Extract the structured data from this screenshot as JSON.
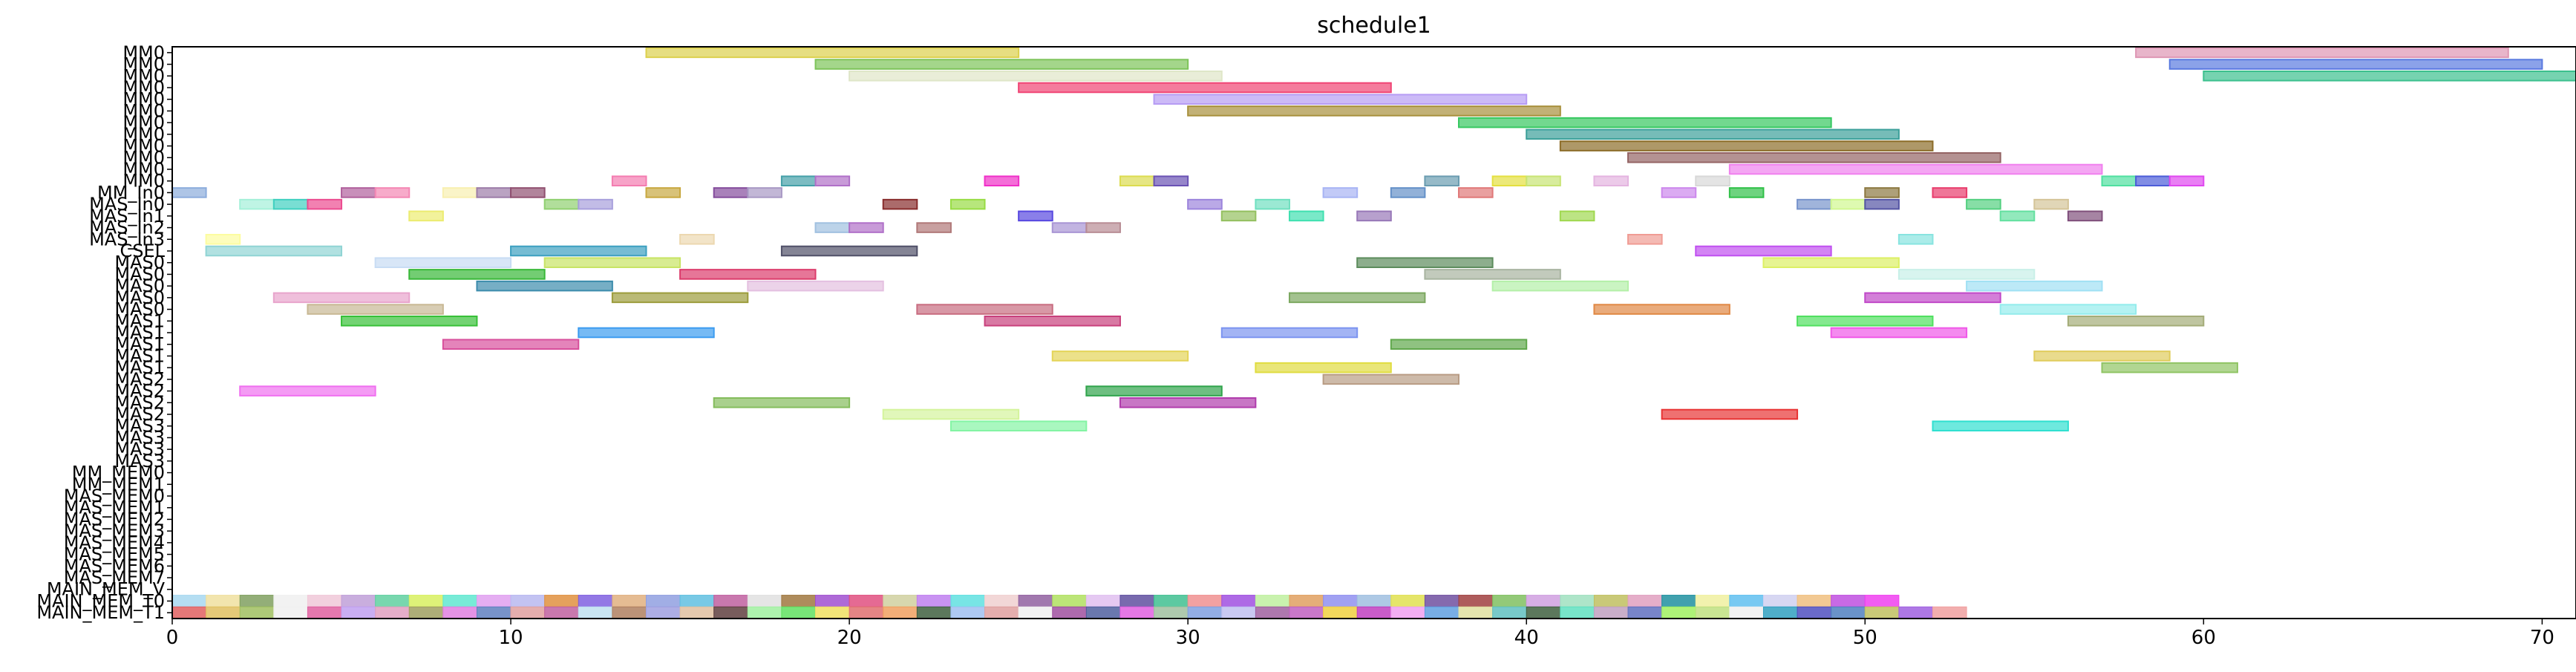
{
  "chart_data": {
    "type": "gantt",
    "title": "schedule1",
    "xlabel": "",
    "ylabel": "",
    "xlim": [
      0,
      71
    ],
    "xticks": [
      0,
      10,
      20,
      30,
      40,
      50,
      60,
      70
    ],
    "grid": false,
    "rows": [
      "MM0",
      "MM0",
      "MM0",
      "MM0",
      "MM0",
      "MM0",
      "MM0",
      "MM0",
      "MM0",
      "MM0",
      "MM0",
      "MM0",
      "MM_In0",
      "MAS_In0",
      "MAS_In1",
      "MAS_In2",
      "MAS_In3",
      "CSEL",
      "MAS0",
      "MAS0",
      "MAS0",
      "MAS0",
      "MAS0",
      "MAS1",
      "MAS1",
      "MAS1",
      "MAS1",
      "MAS1",
      "MAS2",
      "MAS2",
      "MAS2",
      "MAS2",
      "MAS3",
      "MAS3",
      "MAS3",
      "MAS3",
      "MM_MEM0",
      "MM_MEM1",
      "MAS_MEM0",
      "MAS_MEM1",
      "MAS_MEM2",
      "MAS_MEM3",
      "MAS_MEM4",
      "MAS_MEM5",
      "MAS_MEM6",
      "MAS_MEM7",
      "MAIN_MEM_V",
      "MAIN_MEM_T0",
      "MAIN_MEM_T1"
    ],
    "bars": [
      {
        "row": 0,
        "start": 14,
        "end": 25,
        "color": "#dcd04c"
      },
      {
        "row": 0,
        "start": 58,
        "end": 69,
        "color": "#de96b4"
      },
      {
        "row": 1,
        "start": 19,
        "end": 30,
        "color": "#7ec45a"
      },
      {
        "row": 1,
        "start": 59,
        "end": 70,
        "color": "#5a7ae0"
      },
      {
        "row": 2,
        "start": 20,
        "end": 31,
        "color": "#dfe6c8"
      },
      {
        "row": 2,
        "start": 60,
        "end": 71,
        "color": "#3cc08e"
      },
      {
        "row": 3,
        "start": 25,
        "end": 36,
        "color": "#f04474"
      },
      {
        "row": 4,
        "start": 29,
        "end": 40,
        "color": "#b69cf4"
      },
      {
        "row": 5,
        "start": 30,
        "end": 41,
        "color": "#a8903c"
      },
      {
        "row": 6,
        "start": 38,
        "end": 49,
        "color": "#36c860"
      },
      {
        "row": 7,
        "start": 40,
        "end": 51,
        "color": "#3ca09a"
      },
      {
        "row": 8,
        "start": 41,
        "end": 52,
        "color": "#8c6c28"
      },
      {
        "row": 9,
        "start": 43,
        "end": 54,
        "color": "#946464"
      },
      {
        "row": 10,
        "start": 46,
        "end": 57,
        "color": "#f080ee"
      },
      {
        "row": 11,
        "start": 13,
        "end": 14,
        "color": "#f47cb0"
      },
      {
        "row": 11,
        "start": 18,
        "end": 19,
        "color": "#44a0a8"
      },
      {
        "row": 11,
        "start": 19,
        "end": 20,
        "color": "#b070c8"
      },
      {
        "row": 11,
        "start": 24,
        "end": 25,
        "color": "#f030c8"
      },
      {
        "row": 11,
        "start": 28,
        "end": 29,
        "color": "#dcdc50"
      },
      {
        "row": 11,
        "start": 29,
        "end": 30,
        "color": "#6a52b4"
      },
      {
        "row": 11,
        "start": 37,
        "end": 38,
        "color": "#6a9cb0"
      },
      {
        "row": 11,
        "start": 39,
        "end": 40,
        "color": "#e4e040"
      },
      {
        "row": 11,
        "start": 40,
        "end": 41,
        "color": "#c8e474"
      },
      {
        "row": 11,
        "start": 42,
        "end": 43,
        "color": "#e4b4e0"
      },
      {
        "row": 11,
        "start": 45,
        "end": 46,
        "color": "#d8d8d8"
      },
      {
        "row": 11,
        "start": 57,
        "end": 58,
        "color": "#50e0a0"
      },
      {
        "row": 11,
        "start": 58,
        "end": 59,
        "color": "#4c5cd8"
      },
      {
        "row": 11,
        "start": 59,
        "end": 60,
        "color": "#e048f0"
      },
      {
        "row": 12,
        "start": 0,
        "end": 1,
        "color": "#8cacdc"
      },
      {
        "row": 12,
        "start": 5,
        "end": 6,
        "color": "#b0609c"
      },
      {
        "row": 12,
        "start": 6,
        "end": 7,
        "color": "#f488b4"
      },
      {
        "row": 12,
        "start": 8,
        "end": 9,
        "color": "#f8f0b0"
      },
      {
        "row": 12,
        "start": 9,
        "end": 10,
        "color": "#9c7ca8"
      },
      {
        "row": 12,
        "start": 10,
        "end": 11,
        "color": "#905070"
      },
      {
        "row": 12,
        "start": 14,
        "end": 15,
        "color": "#c8a840"
      },
      {
        "row": 12,
        "start": 16,
        "end": 17,
        "color": "#844c9c"
      },
      {
        "row": 12,
        "start": 17,
        "end": 18,
        "color": "#a898c4"
      },
      {
        "row": 12,
        "start": 34,
        "end": 35,
        "color": "#a8b4f4"
      },
      {
        "row": 12,
        "start": 36,
        "end": 37,
        "color": "#6490c8"
      },
      {
        "row": 12,
        "start": 38,
        "end": 39,
        "color": "#e07878"
      },
      {
        "row": 12,
        "start": 44,
        "end": 45,
        "color": "#cc88ec"
      },
      {
        "row": 12,
        "start": 46,
        "end": 47,
        "color": "#30c048"
      },
      {
        "row": 12,
        "start": 50,
        "end": 51,
        "color": "#8c7840"
      },
      {
        "row": 12,
        "start": 52,
        "end": 53,
        "color": "#e83c6c"
      },
      {
        "row": 13,
        "start": 2,
        "end": 3,
        "color": "#a4f0d8"
      },
      {
        "row": 13,
        "start": 3,
        "end": 4,
        "color": "#40d0c0"
      },
      {
        "row": 13,
        "start": 4,
        "end": 5,
        "color": "#ec4c90"
      },
      {
        "row": 13,
        "start": 11,
        "end": 12,
        "color": "#90d070"
      },
      {
        "row": 13,
        "start": 12,
        "end": 13,
        "color": "#a8a0dc"
      },
      {
        "row": 13,
        "start": 21,
        "end": 22,
        "color": "#882c2c"
      },
      {
        "row": 13,
        "start": 23,
        "end": 24,
        "color": "#98dc44"
      },
      {
        "row": 13,
        "start": 30,
        "end": 31,
        "color": "#9c84dc"
      },
      {
        "row": 13,
        "start": 32,
        "end": 33,
        "color": "#70e0c0"
      },
      {
        "row": 13,
        "start": 48,
        "end": 49,
        "color": "#7894cc"
      },
      {
        "row": 13,
        "start": 49,
        "end": 50,
        "color": "#d0f890"
      },
      {
        "row": 13,
        "start": 50,
        "end": 51,
        "color": "#5454a4"
      },
      {
        "row": 13,
        "start": 53,
        "end": 54,
        "color": "#54d080"
      },
      {
        "row": 13,
        "start": 55,
        "end": 56,
        "color": "#d4c498"
      },
      {
        "row": 14,
        "start": 7,
        "end": 8,
        "color": "#ecec70"
      },
      {
        "row": 14,
        "start": 25,
        "end": 26,
        "color": "#5848e0"
      },
      {
        "row": 14,
        "start": 31,
        "end": 32,
        "color": "#94c060"
      },
      {
        "row": 14,
        "start": 33,
        "end": 34,
        "color": "#40e0b0"
      },
      {
        "row": 14,
        "start": 35,
        "end": 36,
        "color": "#9878b8"
      },
      {
        "row": 14,
        "start": 41,
        "end": 42,
        "color": "#a0d850"
      },
      {
        "row": 14,
        "start": 54,
        "end": 55,
        "color": "#64e0a0"
      },
      {
        "row": 14,
        "start": 56,
        "end": 57,
        "color": "#80507c"
      },
      {
        "row": 15,
        "start": 19,
        "end": 20,
        "color": "#a0c0e0"
      },
      {
        "row": 15,
        "start": 20,
        "end": 21,
        "color": "#b070c8"
      },
      {
        "row": 15,
        "start": 22,
        "end": 23,
        "color": "#b07878"
      },
      {
        "row": 15,
        "start": 26,
        "end": 27,
        "color": "#a894d4"
      },
      {
        "row": 15,
        "start": 27,
        "end": 28,
        "color": "#b88c94"
      },
      {
        "row": 16,
        "start": 1,
        "end": 2,
        "color": "#fcfca0"
      },
      {
        "row": 16,
        "start": 15,
        "end": 16,
        "color": "#ecd8b0"
      },
      {
        "row": 16,
        "start": 43,
        "end": 44,
        "color": "#f09c94"
      },
      {
        "row": 16,
        "start": 51,
        "end": 52,
        "color": "#88e4e0"
      },
      {
        "row": 17,
        "start": 1,
        "end": 5,
        "color": "#90d4d4"
      },
      {
        "row": 17,
        "start": 10,
        "end": 14,
        "color": "#3ca0c0"
      },
      {
        "row": 17,
        "start": 18,
        "end": 22,
        "color": "#505068"
      },
      {
        "row": 17,
        "start": 45,
        "end": 49,
        "color": "#c050f0"
      },
      {
        "row": 18,
        "start": 6,
        "end": 10,
        "color": "#c8dcf4"
      },
      {
        "row": 18,
        "start": 11,
        "end": 15,
        "color": "#c8e464"
      },
      {
        "row": 18,
        "start": 35,
        "end": 39,
        "color": "#5c8c5c"
      },
      {
        "row": 18,
        "start": 47,
        "end": 51,
        "color": "#dcf064"
      },
      {
        "row": 19,
        "start": 7,
        "end": 11,
        "color": "#38b838"
      },
      {
        "row": 19,
        "start": 15,
        "end": 19,
        "color": "#dc3c6c"
      },
      {
        "row": 19,
        "start": 37,
        "end": 41,
        "color": "#a8b4a0"
      },
      {
        "row": 19,
        "start": 51,
        "end": 55,
        "color": "#c8f0e8"
      },
      {
        "row": 20,
        "start": 9,
        "end": 13,
        "color": "#3c8cac"
      },
      {
        "row": 20,
        "start": 17,
        "end": 21,
        "color": "#e4c0e0"
      },
      {
        "row": 20,
        "start": 39,
        "end": 43,
        "color": "#b4f0a8"
      },
      {
        "row": 20,
        "start": 53,
        "end": 57,
        "color": "#a0e0f4"
      },
      {
        "row": 21,
        "start": 3,
        "end": 7,
        "color": "#e8a4cc"
      },
      {
        "row": 21,
        "start": 13,
        "end": 17,
        "color": "#9c9c3c"
      },
      {
        "row": 21,
        "start": 33,
        "end": 37,
        "color": "#7ca860"
      },
      {
        "row": 21,
        "start": 50,
        "end": 54,
        "color": "#c048c8"
      },
      {
        "row": 22,
        "start": 4,
        "end": 8,
        "color": "#c8b894"
      },
      {
        "row": 22,
        "start": 22,
        "end": 26,
        "color": "#c86c80"
      },
      {
        "row": 22,
        "start": 42,
        "end": 46,
        "color": "#e08844"
      },
      {
        "row": 22,
        "start": 54,
        "end": 58,
        "color": "#94ecec"
      },
      {
        "row": 23,
        "start": 5,
        "end": 9,
        "color": "#38c038"
      },
      {
        "row": 23,
        "start": 24,
        "end": 28,
        "color": "#c8407c"
      },
      {
        "row": 23,
        "start": 48,
        "end": 52,
        "color": "#50e060"
      },
      {
        "row": 23,
        "start": 56,
        "end": 60,
        "color": "#a4ac78"
      },
      {
        "row": 24,
        "start": 12,
        "end": 16,
        "color": "#3c9cf0"
      },
      {
        "row": 24,
        "start": 31,
        "end": 35,
        "color": "#7c94f0"
      },
      {
        "row": 24,
        "start": 49,
        "end": 53,
        "color": "#f058e8"
      },
      {
        "row": 25,
        "start": 8,
        "end": 12,
        "color": "#d8509c"
      },
      {
        "row": 25,
        "start": 36,
        "end": 40,
        "color": "#60a84c"
      },
      {
        "row": 26,
        "start": 26,
        "end": 30,
        "color": "#e4d458"
      },
      {
        "row": 26,
        "start": 55,
        "end": 59,
        "color": "#e0cc5c"
      },
      {
        "row": 27,
        "start": 32,
        "end": 36,
        "color": "#e0dc40"
      },
      {
        "row": 27,
        "start": 57,
        "end": 61,
        "color": "#90c464"
      },
      {
        "row": 28,
        "start": 34,
        "end": 38,
        "color": "#b89c84"
      },
      {
        "row": 29,
        "start": 2,
        "end": 6,
        "color": "#f070f0"
      },
      {
        "row": 29,
        "start": 27,
        "end": 31,
        "color": "#30a44c"
      },
      {
        "row": 30,
        "start": 16,
        "end": 20,
        "color": "#84bc5c"
      },
      {
        "row": 30,
        "start": 28,
        "end": 32,
        "color": "#b03cac"
      },
      {
        "row": 31,
        "start": 21,
        "end": 25,
        "color": "#d4f49c"
      },
      {
        "row": 31,
        "start": 44,
        "end": 48,
        "color": "#e83434"
      },
      {
        "row": 32,
        "start": 23,
        "end": 27,
        "color": "#84f4a4"
      },
      {
        "row": 32,
        "start": 52,
        "end": 56,
        "color": "#30e0d0"
      }
    ],
    "memory_rows": {
      "MAIN_MEM_T0": [
        "#a8d8f0",
        "#f0e0a0",
        "#80a060",
        "#f0f0f0",
        "#f0c8d8",
        "#c0a0d8",
        "#60d0a0",
        "#d8f060",
        "#60e8d0",
        "#e0a0f0",
        "#b8b8f0",
        "#e09040",
        "#8060e0",
        "#e0b080",
        "#90a0e0",
        "#60c0e0",
        "#c060a0",
        "#e0e0e0",
        "#a07840",
        "#a050d0",
        "#e05080",
        "#d0d0a0",
        "#c080f0",
        "#60e0e0",
        "#f0d0d0",
        "#9060a0",
        "#b0e060",
        "#e0c0f0",
        "#6050a0",
        "#40c090",
        "#f09090",
        "#a050e0",
        "#c0f0a0",
        "#e0a060",
        "#9090f0",
        "#a0c0e0",
        "#e0e050",
        "#7050a0",
        "#a04040",
        "#80c060",
        "#d0a0e0",
        "#a0e0c0",
        "#c0c060",
        "#e0a0c0",
        "#2090a0",
        "#f0f0a0",
        "#60c0f0",
        "#d0d0f0",
        "#f0c080",
        "#c050e0",
        "#f040f0"
      ],
      "MAIN_MEM_T1": [
        "#e06060",
        "#e0c060",
        "#a0c060",
        "#f0f0f0",
        "#e060a0",
        "#c0a0f0",
        "#e0a0c0",
        "#a0a060",
        "#e080e0",
        "#6080c0",
        "#e0a0a0",
        "#c060a0",
        "#c0e0f0",
        "#b08060",
        "#a0a0e0",
        "#e0c0a0",
        "#604040",
        "#a0f0a0",
        "#60e060",
        "#f0e060",
        "#e07070",
        "#f0a060",
        "#406040",
        "#a0c0f0",
        "#e0a0a0",
        "#f0f0f0",
        "#a050a0",
        "#5060a0",
        "#e060e0",
        "#a0c0a0",
        "#80a0e0",
        "#c0c0f0",
        "#a060a0",
        "#c060c0",
        "#f0d040",
        "#c040c0",
        "#f0a0f0",
        "#60a0e0",
        "#e0e0a0",
        "#60c0c0",
        "#406040",
        "#60e0c0",
        "#c0a0c0",
        "#6070c0",
        "#a0f060",
        "#c0e080",
        "#f0f0f0",
        "#30a0c0",
        "#5050c0",
        "#5080c0",
        "#c0c060",
        "#a060e0",
        "#f0a0a0"
      ]
    }
  }
}
